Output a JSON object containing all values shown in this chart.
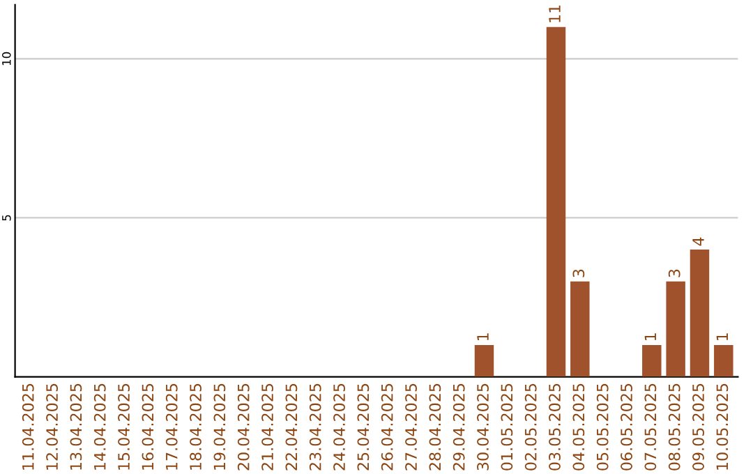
{
  "chart_data": {
    "type": "bar",
    "categories": [
      "11.04.2025",
      "12.04.2025",
      "13.04.2025",
      "14.04.2025",
      "15.04.2025",
      "16.04.2025",
      "17.04.2025",
      "18.04.2025",
      "19.04.2025",
      "20.04.2025",
      "21.04.2025",
      "22.04.2025",
      "23.04.2025",
      "24.04.2025",
      "25.04.2025",
      "26.04.2025",
      "27.04.2025",
      "28.04.2025",
      "29.04.2025",
      "30.04.2025",
      "01.05.2025",
      "02.05.2025",
      "03.05.2025",
      "04.05.2025",
      "05.05.2025",
      "06.05.2025",
      "07.05.2025",
      "08.05.2025",
      "09.05.2025",
      "10.05.2025"
    ],
    "values": [
      0,
      0,
      0,
      0,
      0,
      0,
      0,
      0,
      0,
      0,
      0,
      0,
      0,
      0,
      0,
      0,
      0,
      0,
      0,
      1,
      0,
      0,
      11,
      3,
      0,
      0,
      1,
      3,
      4,
      1
    ],
    "value_labels": [
      null,
      null,
      null,
      null,
      null,
      null,
      null,
      null,
      null,
      null,
      null,
      null,
      null,
      null,
      null,
      null,
      null,
      null,
      null,
      "1",
      null,
      null,
      "11",
      "3",
      null,
      null,
      "1",
      "3",
      "4",
      "1"
    ],
    "color": "#a0522d",
    "ylim": [
      0,
      11.7
    ],
    "yticks": [
      5,
      10
    ],
    "grid": "y"
  }
}
